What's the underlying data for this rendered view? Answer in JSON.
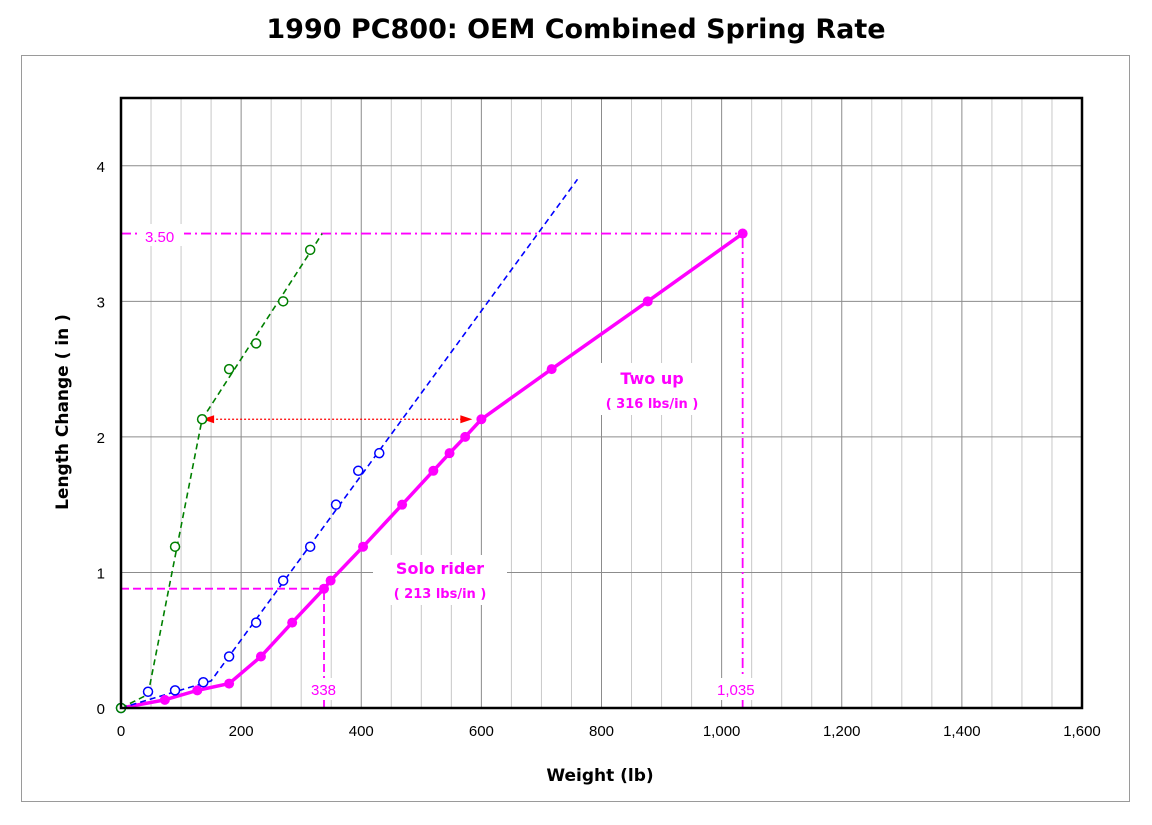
{
  "chart_data": {
    "type": "line",
    "title": "1990 PC800:  OEM Combined Spring Rate",
    "xlabel": "Weight (lb)",
    "ylabel": "Length Change  ( in )",
    "xlim": [
      0,
      1600
    ],
    "ylim": [
      0,
      4.5
    ],
    "x_ticks": [
      0,
      200,
      400,
      600,
      800,
      1000,
      1200,
      1400,
      1600
    ],
    "x_tick_labels": [
      "0",
      "200",
      "400",
      "600",
      "800",
      "1,000",
      "1,200",
      "1,400",
      "1,600"
    ],
    "y_ticks": [
      0,
      1,
      2,
      3,
      4
    ],
    "y_tick_labels": [
      "0",
      "1",
      "2",
      "3",
      "4"
    ],
    "x_minor_step": 50,
    "grid": true,
    "series": [
      {
        "style": "line-solid-markers",
        "color": "#ff00ff",
        "x": [
          0,
          73,
          127,
          180,
          233,
          285,
          338,
          349,
          403,
          468,
          520,
          547,
          573,
          600,
          717,
          877,
          1035
        ],
        "y": [
          0,
          0.06,
          0.13,
          0.18,
          0.38,
          0.63,
          0.88,
          0.94,
          1.19,
          1.5,
          1.75,
          1.88,
          2.0,
          2.13,
          2.5,
          3.0,
          3.5
        ]
      },
      {
        "style": "open-markers",
        "color": "#0000ff",
        "x": [
          0,
          45,
          90,
          137,
          180,
          225,
          270,
          315,
          358,
          395,
          430
        ],
        "y": [
          0,
          0.12,
          0.13,
          0.19,
          0.38,
          0.63,
          0.94,
          1.19,
          1.5,
          1.75,
          1.88
        ]
      },
      {
        "style": "dashed-fit",
        "color": "#0000ff",
        "x": [
          0,
          150,
          760
        ],
        "y": [
          0,
          0.2,
          3.9
        ]
      },
      {
        "style": "open-markers",
        "color": "#008000",
        "x": [
          0,
          90,
          135,
          180,
          225,
          270,
          315
        ],
        "y": [
          0,
          1.19,
          2.13,
          2.5,
          2.69,
          3.0,
          3.38
        ]
      },
      {
        "style": "dashed-fit",
        "color": "#008000",
        "x": [
          0,
          45,
          135,
          335
        ],
        "y": [
          0,
          0.1,
          2.13,
          3.5
        ]
      }
    ],
    "reference_lines": [
      {
        "style": "dash-dot",
        "color": "#ff00ff",
        "y": 3.5,
        "x_from": 0,
        "x_to": 1035
      },
      {
        "style": "dash-dot",
        "color": "#ff00ff",
        "x": 1035,
        "y_from": 0,
        "y_to": 3.5
      },
      {
        "style": "dashed",
        "color": "#ff00ff",
        "y": 0.88,
        "x_from": 0,
        "x_to": 338
      },
      {
        "style": "dashed",
        "color": "#ff00ff",
        "x": 338,
        "y_from": 0,
        "y_to": 0.88
      }
    ],
    "arrow": {
      "color": "#ff0000",
      "y": 2.13,
      "x_from": 135,
      "x_to": 585
    },
    "annotations": {
      "y_ref_label": "3.50",
      "x_ref_label_solo": "338",
      "x_ref_label_two": "1,035",
      "solo_title": "Solo rider",
      "solo_rate": "( 213 lbs/in )",
      "two_title": "Two up",
      "two_rate": "( 316 lbs/in )"
    }
  }
}
